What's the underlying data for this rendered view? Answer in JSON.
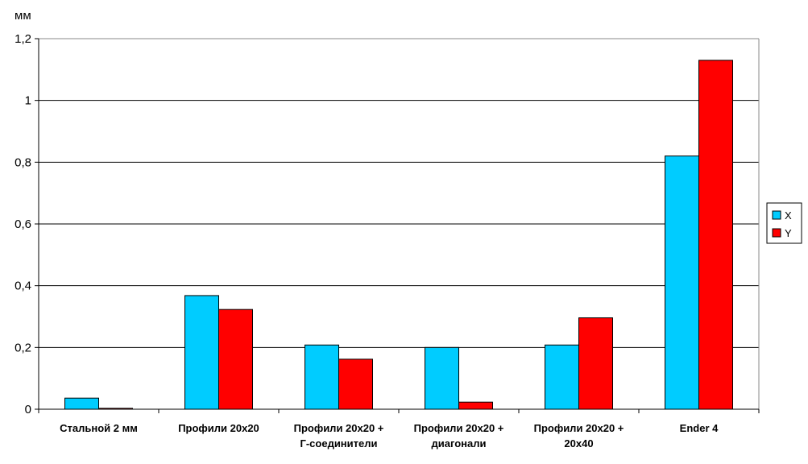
{
  "chart_data": {
    "type": "bar",
    "unit_label": "мм",
    "categories": [
      [
        "Стальной 2 мм"
      ],
      [
        "Профили 20x20"
      ],
      [
        "Профили 20x20 +",
        "Г-соединители"
      ],
      [
        "Профили 20x20 +",
        "диагонали"
      ],
      [
        "Профили 20x20 +",
        "20x40"
      ],
      [
        "Ender 4"
      ]
    ],
    "series": [
      {
        "name": "X",
        "color": "#00CCFF",
        "values": [
          0.036,
          0.368,
          0.208,
          0.2,
          0.208,
          0.82
        ]
      },
      {
        "name": "Y",
        "color": "#FF0000",
        "values": [
          0.003,
          0.323,
          0.162,
          0.023,
          0.296,
          1.13
        ]
      }
    ],
    "ylim": [
      0,
      1.2
    ],
    "y_ticks": [
      "0",
      "0,2",
      "0,4",
      "0,6",
      "0,8",
      "1",
      "1,2"
    ],
    "grid": true,
    "legend_position": "right"
  }
}
